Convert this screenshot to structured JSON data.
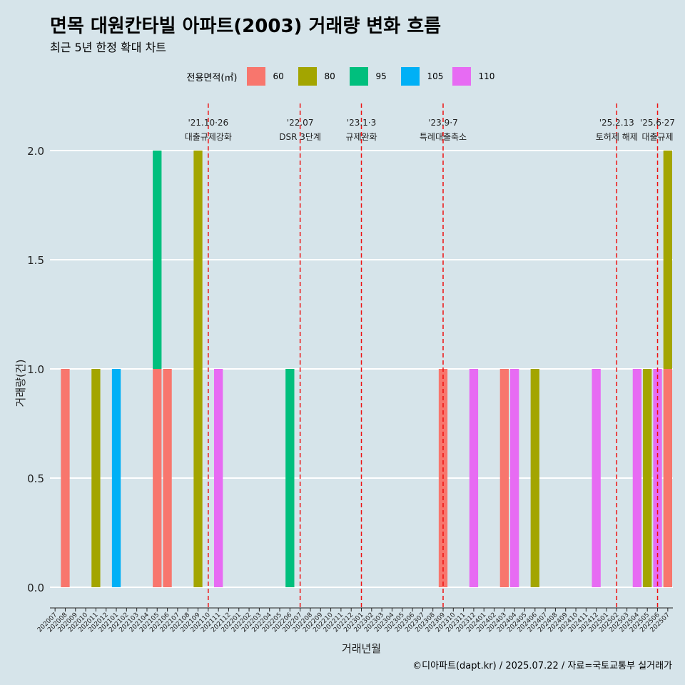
{
  "title": "면목 대원칸타빌 아파트(2003) 거래량 변화 흐름",
  "subtitle": "최근 5년 한정 확대 차트",
  "caption": "©디아파트(dapt.kr) / 2025.07.22 / 자료=국토교통부 실거래가",
  "legend": {
    "title": "전용면적(㎡)",
    "items": [
      {
        "label": "60",
        "color": "#F8766D"
      },
      {
        "label": "80",
        "color": "#A3A500"
      },
      {
        "label": "95",
        "color": "#00BF7D"
      },
      {
        "label": "105",
        "color": "#00B0F6"
      },
      {
        "label": "110",
        "color": "#E76BF3"
      }
    ]
  },
  "chart_data": {
    "type": "bar",
    "xlabel": "거래년월",
    "ylabel": "거래량(건)",
    "ylim": [
      0,
      2.0
    ],
    "yticks": [
      0.0,
      0.5,
      1.0,
      1.5,
      2.0
    ],
    "ytick_labels": [
      "0.0",
      "0.5",
      "1.0",
      "1.5",
      "2.0"
    ],
    "categories": [
      "202007",
      "202008",
      "202009",
      "202010",
      "202011",
      "202012",
      "202101",
      "202102",
      "202103",
      "202104",
      "202105",
      "202106",
      "202107",
      "202108",
      "202109",
      "202110",
      "202111",
      "202112",
      "202201",
      "202202",
      "202203",
      "202204",
      "202205",
      "202206",
      "202207",
      "202208",
      "202209",
      "202210",
      "202211",
      "202212",
      "202301",
      "202302",
      "202303",
      "202304",
      "202305",
      "202306",
      "202307",
      "202308",
      "202309",
      "202310",
      "202311",
      "202312",
      "202401",
      "202402",
      "202403",
      "202404",
      "202405",
      "202406",
      "202407",
      "202408",
      "202409",
      "202410",
      "202411",
      "202412",
      "202501",
      "202502",
      "202503",
      "202504",
      "202505",
      "202506",
      "202507"
    ],
    "series": [
      {
        "name": "60",
        "values": {
          "202008": 1,
          "202106": 1,
          "202105": 1,
          "202309": 1,
          "202403": 1,
          "202507": 1
        }
      },
      {
        "name": "80",
        "values": {
          "202011": 1,
          "202109": 2,
          "202406": 1,
          "202505": 1,
          "202507": 1
        }
      },
      {
        "name": "95",
        "values": {
          "202105": 1,
          "202206": 1
        }
      },
      {
        "name": "105",
        "values": {
          "202101": 1
        }
      },
      {
        "name": "110",
        "values": {
          "202111": 1,
          "202312": 1,
          "202404": 1,
          "202412": 1,
          "202504": 1,
          "202506": 1
        }
      }
    ],
    "events": [
      {
        "x": "202110",
        "label1": "'21.10·26",
        "label2": "대출규제강화"
      },
      {
        "x": "202207",
        "label1": "'22.07",
        "label2": "DSR 3단계"
      },
      {
        "x": "202301",
        "label1": "'23.1·3",
        "label2": "규제완화"
      },
      {
        "x": "202309",
        "label1": "'23.9·7",
        "label2": "특례대출축소"
      },
      {
        "x": "202502",
        "label1": "'25.2.13",
        "label2": "토허제 해제"
      },
      {
        "x": "202506",
        "label1": "'25.6·27",
        "label2": "대출규제"
      }
    ]
  }
}
